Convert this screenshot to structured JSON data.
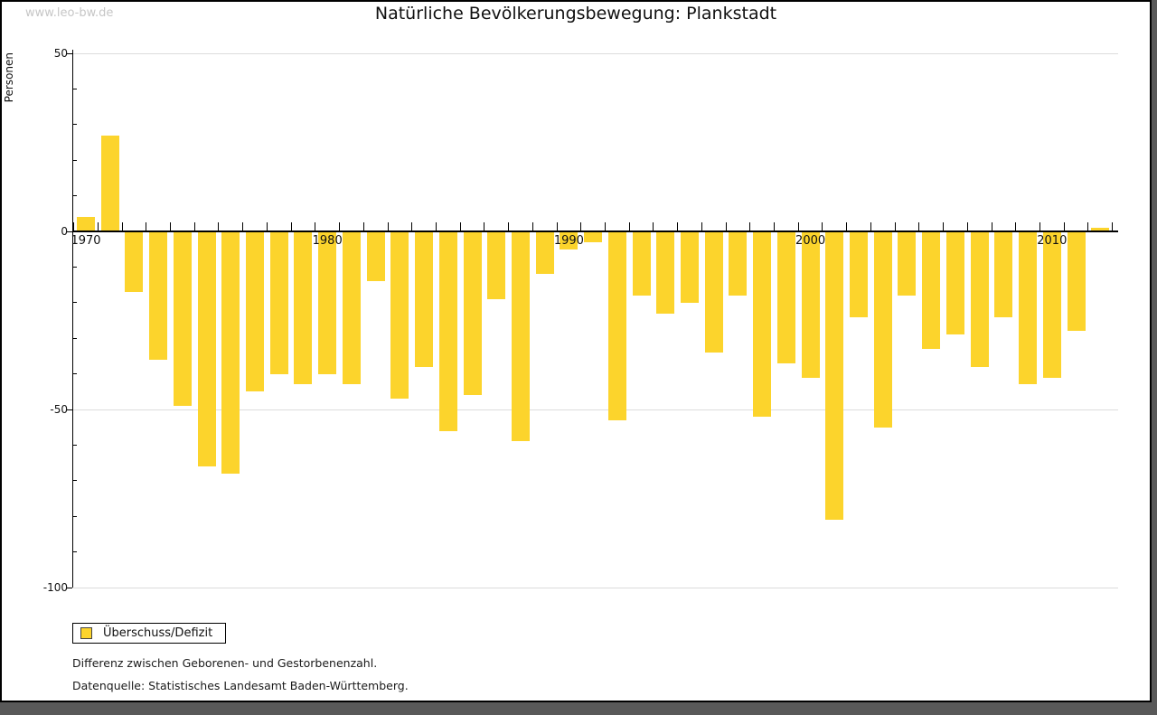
{
  "watermark": "www.leo-bw.de",
  "colors": {
    "bar": "#FCD42C",
    "gridline": "#DCDCDC",
    "axis": "#000000",
    "watermark": "#C6C6C6",
    "backdrop": "#595959",
    "page_background": "#FFFFFF"
  },
  "legend": {
    "label": "Überschuss/Defizit"
  },
  "footnotes": [
    "Differenz zwischen Geborenen- und Gestorbenenzahl.",
    "Datenquelle: Statistisches Landesamt Baden-Württemberg."
  ],
  "chart_data": {
    "type": "bar",
    "title": "Natürliche Bevölkerungsbewegung: Plankstadt",
    "xlabel": "",
    "ylabel": "Personen",
    "series_name": "Überschuss/Defizit",
    "ylim": [
      -100,
      50
    ],
    "grid": "horizontal gridlines at 50, -50, -100; zero baseline is the x-axis",
    "legend_position": "below chart, bottom-left",
    "y_ticks": [
      {
        "value": 50,
        "label": "50"
      },
      {
        "value": 0,
        "label": "0"
      },
      {
        "value": -50,
        "label": "-50"
      },
      {
        "value": -100,
        "label": "-100"
      }
    ],
    "y_minor_tick_step": 10,
    "x_decade_labels": [
      {
        "year": 1970,
        "label": "1970"
      },
      {
        "year": 1980,
        "label": "1980"
      },
      {
        "year": 1990,
        "label": "1990"
      },
      {
        "year": 2000,
        "label": "2000"
      },
      {
        "year": 2010,
        "label": "2010"
      }
    ],
    "x": [
      1970,
      1971,
      1972,
      1973,
      1974,
      1975,
      1976,
      1977,
      1978,
      1979,
      1980,
      1981,
      1982,
      1983,
      1984,
      1985,
      1986,
      1987,
      1988,
      1989,
      1990,
      1991,
      1992,
      1993,
      1994,
      1995,
      1996,
      1997,
      1998,
      1999,
      2000,
      2001,
      2002,
      2003,
      2004,
      2005,
      2006,
      2007,
      2008,
      2009,
      2010,
      2011,
      2012
    ],
    "values": [
      4,
      27,
      -17,
      -36,
      -49,
      -66,
      -68,
      -45,
      -40,
      -43,
      -40,
      -43,
      -14,
      -47,
      -38,
      -56,
      -46,
      -19,
      -59,
      -12,
      -5,
      -3,
      -53,
      -18,
      -23,
      -20,
      -34,
      -18,
      -52,
      -37,
      -41,
      -81,
      -24,
      -55,
      -18,
      -33,
      -29,
      -38,
      -24,
      -43,
      -41,
      -28,
      1
    ]
  }
}
